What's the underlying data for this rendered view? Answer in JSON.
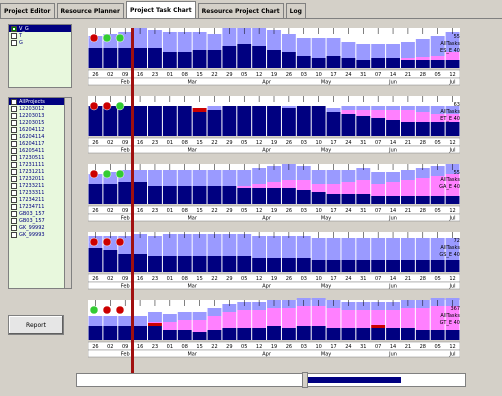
{
  "tabs": [
    {
      "label": "Project Editor",
      "active": false
    },
    {
      "label": "Resource Planner",
      "active": false
    },
    {
      "label": "Project Task Chart",
      "active": true
    },
    {
      "label": "Resource Project Chart",
      "active": false
    },
    {
      "label": "Log",
      "active": false
    }
  ],
  "chart_type_list": [
    {
      "label": "V_G",
      "checked": true,
      "selected": true
    },
    {
      "label": "T",
      "checked": false,
      "selected": false
    },
    {
      "label": "G",
      "checked": false,
      "selected": false
    }
  ],
  "projects_list": [
    {
      "label": "AllProjects",
      "selected": true
    },
    {
      "label": "12203012"
    },
    {
      "label": "12203013"
    },
    {
      "label": "12203015"
    },
    {
      "label": "16204112"
    },
    {
      "label": "16204114"
    },
    {
      "label": "16204117"
    },
    {
      "label": "16205411"
    },
    {
      "label": "17230511"
    },
    {
      "label": "17231111"
    },
    {
      "label": "17231211"
    },
    {
      "label": "17232011"
    },
    {
      "label": "17233211"
    },
    {
      "label": "17233311"
    },
    {
      "label": "17234211"
    },
    {
      "label": "17234711"
    },
    {
      "label": "GB03_157"
    },
    {
      "label": "GB03_157"
    },
    {
      "label": "GK_99992"
    },
    {
      "label": "GK_99993"
    }
  ],
  "report_label": "Report",
  "colors": {
    "navy": "#000080",
    "lavender": "#9a9aff",
    "pink": "#ff80ff",
    "red": "#cc0000",
    "green": "#33cc33",
    "marker": "#a01010"
  },
  "chart_data": {
    "type": "bar",
    "categories": [
      "26",
      "02",
      "09",
      "16",
      "23",
      "01",
      "08",
      "15",
      "22",
      "29",
      "05",
      "12",
      "19",
      "26",
      "03",
      "10",
      "17",
      "24",
      "31",
      "07",
      "14",
      "21",
      "28",
      "05",
      "12"
    ],
    "month_labels": [
      {
        "label": "Feb",
        "at": 2
      },
      {
        "label": "Mar",
        "at": 6.5
      },
      {
        "label": "Apr",
        "at": 11.5
      },
      {
        "label": "May",
        "at": 15.5
      },
      {
        "label": "Jun",
        "at": 20
      },
      {
        "label": "Jul",
        "at": 24
      }
    ],
    "panels": [
      {
        "side": [
          "55",
          "AllTasks",
          "ES_E 40"
        ],
        "circles": [
          "red",
          "green",
          "green"
        ],
        "navy": [
          20,
          20,
          20,
          20,
          20,
          16,
          16,
          18,
          18,
          22,
          24,
          22,
          18,
          16,
          12,
          10,
          12,
          10,
          8,
          10,
          10,
          8,
          8,
          8,
          8
        ],
        "lavender": [
          12,
          14,
          16,
          20,
          18,
          20,
          20,
          18,
          16,
          22,
          20,
          22,
          20,
          18,
          18,
          20,
          18,
          16,
          16,
          14,
          14,
          16,
          18,
          20,
          20
        ],
        "pink": [
          0,
          0,
          0,
          0,
          0,
          0,
          0,
          0,
          0,
          0,
          0,
          0,
          0,
          0,
          0,
          0,
          0,
          0,
          0,
          0,
          0,
          2,
          3,
          4,
          8
        ],
        "red": [
          0,
          0,
          0,
          0,
          0,
          0,
          0,
          0,
          0,
          0,
          0,
          0,
          0,
          0,
          0,
          0,
          0,
          0,
          0,
          0,
          0,
          0,
          0,
          0,
          0
        ]
      },
      {
        "side": [
          "63",
          "AllTasks",
          "ET_E 40"
        ],
        "circles": [
          "red",
          "red",
          "green"
        ],
        "navy": [
          30,
          30,
          30,
          30,
          30,
          30,
          30,
          24,
          26,
          30,
          30,
          30,
          30,
          28,
          30,
          30,
          24,
          22,
          20,
          18,
          16,
          14,
          14,
          14,
          14
        ],
        "lavender": [
          0,
          0,
          0,
          0,
          0,
          0,
          0,
          4,
          4,
          0,
          0,
          0,
          0,
          2,
          0,
          0,
          4,
          4,
          4,
          4,
          4,
          4,
          6,
          8,
          8
        ],
        "pink": [
          0,
          0,
          0,
          0,
          0,
          0,
          0,
          0,
          0,
          0,
          0,
          0,
          0,
          0,
          0,
          0,
          0,
          4,
          6,
          8,
          10,
          12,
          10,
          8,
          8
        ],
        "red": [
          0,
          0,
          0,
          0,
          0,
          0,
          0,
          4,
          0,
          0,
          0,
          0,
          0,
          0,
          0,
          0,
          0,
          0,
          0,
          0,
          0,
          0,
          0,
          0,
          0
        ]
      },
      {
        "side": [
          "55",
          "AllTasks",
          "GA_E 40"
        ],
        "circles": [
          "red",
          "green",
          "green"
        ],
        "navy": [
          20,
          20,
          22,
          22,
          18,
          18,
          18,
          18,
          18,
          18,
          16,
          16,
          16,
          16,
          14,
          12,
          10,
          10,
          10,
          8,
          8,
          8,
          8,
          8,
          8
        ],
        "lavender": [
          10,
          12,
          12,
          12,
          16,
          16,
          16,
          16,
          16,
          16,
          16,
          16,
          16,
          16,
          14,
          14,
          14,
          12,
          12,
          12,
          10,
          10,
          10,
          10,
          10
        ],
        "pink": [
          0,
          0,
          0,
          0,
          0,
          0,
          0,
          0,
          0,
          0,
          2,
          4,
          6,
          8,
          10,
          8,
          10,
          12,
          14,
          12,
          14,
          16,
          18,
          20,
          22
        ],
        "red": [
          0,
          0,
          0,
          0,
          0,
          0,
          0,
          0,
          0,
          0,
          0,
          0,
          0,
          0,
          0,
          0,
          0,
          0,
          0,
          0,
          0,
          0,
          0,
          0,
          0
        ]
      },
      {
        "side": [
          "72",
          "AllTasks",
          "GS_E 40"
        ],
        "circles": [
          "red",
          "red",
          "red"
        ],
        "navy": [
          24,
          22,
          18,
          18,
          16,
          16,
          16,
          16,
          16,
          16,
          16,
          14,
          14,
          14,
          14,
          12,
          12,
          12,
          12,
          12,
          12,
          12,
          12,
          12,
          12
        ],
        "lavender": [
          12,
          14,
          18,
          20,
          20,
          22,
          22,
          22,
          22,
          22,
          22,
          22,
          22,
          22,
          22,
          22,
          22,
          22,
          22,
          22,
          22,
          22,
          22,
          22,
          22
        ],
        "pink": [
          0,
          0,
          0,
          0,
          0,
          0,
          0,
          0,
          0,
          0,
          0,
          0,
          0,
          0,
          0,
          0,
          0,
          0,
          0,
          0,
          0,
          0,
          0,
          0,
          0
        ],
        "red": [
          0,
          0,
          0,
          0,
          0,
          0,
          0,
          0,
          0,
          0,
          0,
          0,
          0,
          0,
          0,
          0,
          0,
          0,
          0,
          0,
          0,
          0,
          0,
          0,
          0
        ]
      },
      {
        "side": [
          "367",
          "AllTasks",
          "GT_E 40"
        ],
        "circles": [
          "green",
          "red",
          "red"
        ],
        "navy": [
          14,
          14,
          14,
          14,
          14,
          10,
          10,
          8,
          10,
          12,
          12,
          12,
          14,
          12,
          14,
          14,
          12,
          12,
          12,
          12,
          12,
          12,
          10,
          10,
          10
        ],
        "lavender": [
          10,
          10,
          10,
          10,
          10,
          8,
          8,
          8,
          8,
          8,
          8,
          8,
          8,
          8,
          8,
          8,
          8,
          8,
          8,
          8,
          8,
          8,
          8,
          8,
          8
        ],
        "pink": [
          0,
          0,
          0,
          0,
          4,
          8,
          10,
          12,
          14,
          16,
          18,
          18,
          18,
          20,
          20,
          20,
          20,
          18,
          18,
          18,
          18,
          20,
          22,
          24,
          24
        ],
        "red": [
          0,
          0,
          0,
          0,
          3,
          0,
          0,
          0,
          0,
          0,
          0,
          0,
          0,
          0,
          0,
          0,
          0,
          0,
          0,
          3,
          0,
          0,
          0,
          0,
          0
        ]
      }
    ],
    "ylim": [
      0,
      40
    ]
  }
}
